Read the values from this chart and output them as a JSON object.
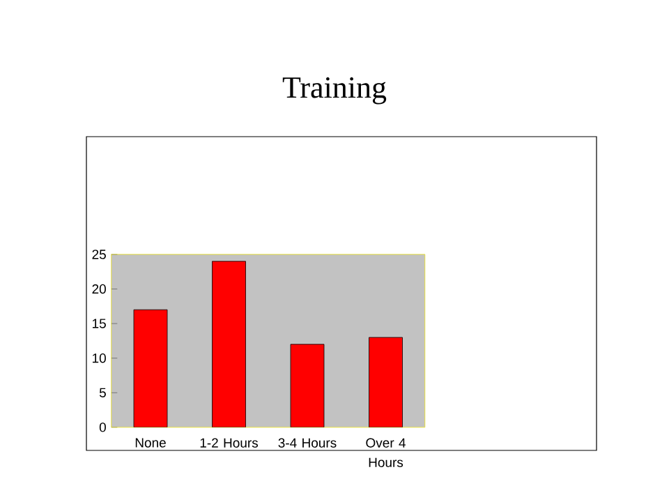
{
  "chart_data": {
    "type": "bar",
    "title": "Training",
    "categories": [
      "None",
      "1-2 Hours",
      "3-4 Hours",
      "Over 4 Hours"
    ],
    "values": [
      17,
      24,
      12,
      13
    ],
    "color": "#ff0000",
    "ylim": [
      0,
      25
    ],
    "yticks": [
      0,
      5,
      10,
      15,
      20,
      25
    ]
  }
}
